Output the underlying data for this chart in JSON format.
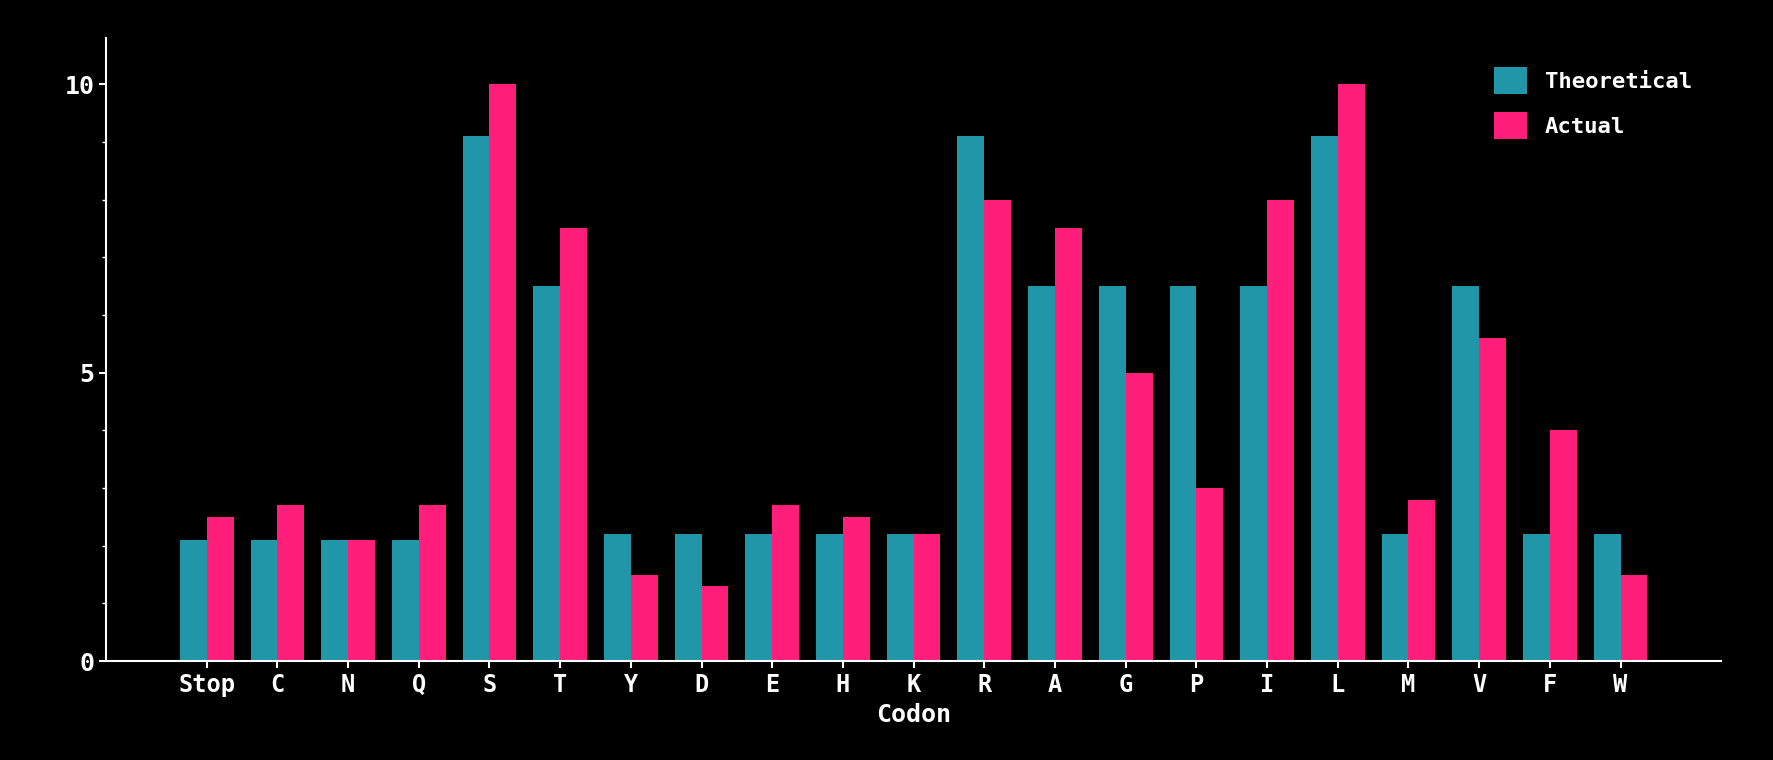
{
  "categories": [
    "Stop",
    "C",
    "N",
    "Q",
    "S",
    "T",
    "Y",
    "D",
    "E",
    "H",
    "K",
    "R",
    "A",
    "G",
    "P",
    "I",
    "L",
    "M",
    "V",
    "F",
    "W"
  ],
  "theoretical": [
    2.1,
    2.1,
    2.1,
    2.1,
    9.1,
    6.5,
    2.2,
    2.2,
    2.2,
    2.2,
    2.2,
    9.1,
    6.5,
    6.5,
    6.5,
    6.5,
    9.1,
    2.2,
    6.5,
    2.2,
    2.2
  ],
  "actual": [
    2.5,
    2.7,
    2.1,
    2.7,
    10.0,
    7.5,
    1.5,
    1.3,
    2.7,
    2.5,
    2.2,
    8.0,
    7.5,
    5.0,
    3.0,
    8.0,
    10.0,
    2.8,
    5.6,
    4.0,
    1.5
  ],
  "theoretical_color": "#2196A8",
  "actual_color": "#FF1E7A",
  "background_color": "#000000",
  "text_color": "#ffffff",
  "xlabel": "Codon",
  "ylabel": "",
  "legend_theoretical": "Theoretical",
  "legend_actual": "Actual",
  "ylim": [
    0,
    10.8
  ],
  "yticks": [
    0,
    5,
    10
  ],
  "ytick_labels": [
    "0",
    "5",
    "10"
  ],
  "bar_width": 0.38,
  "figsize": [
    17.74,
    7.6
  ],
  "dpi": 100,
  "title_fontsize": 0,
  "axis_label_fontsize": 18,
  "tick_fontsize": 17,
  "legend_fontsize": 16
}
